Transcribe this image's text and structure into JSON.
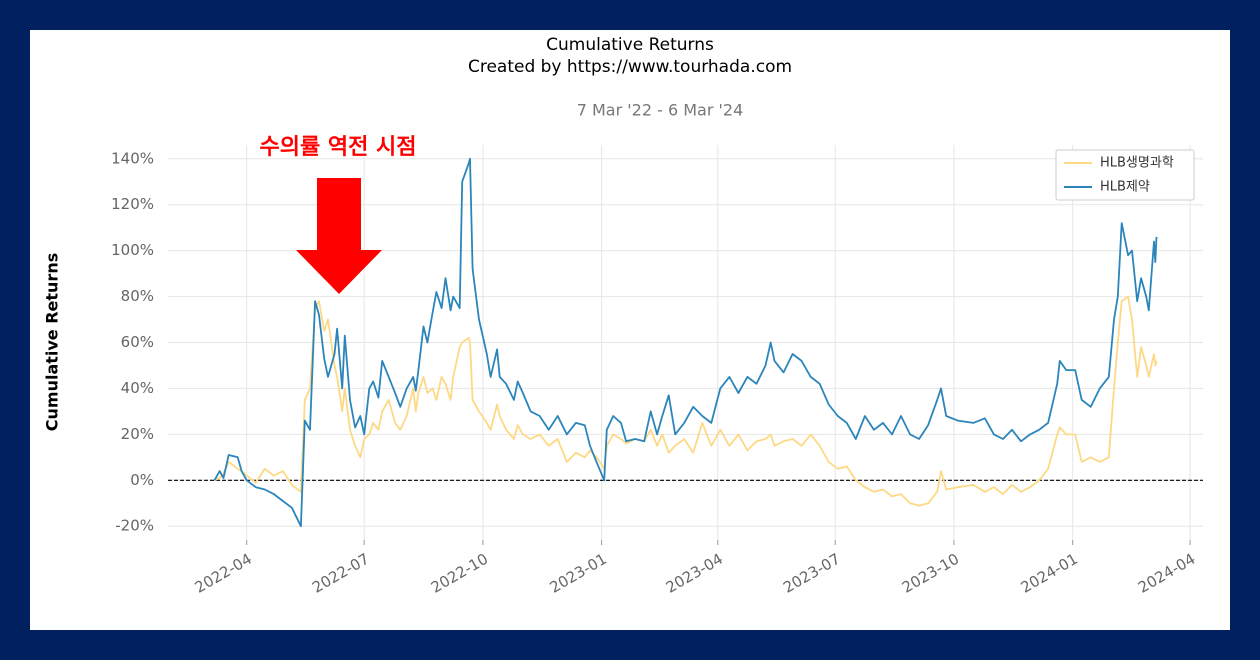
{
  "chart_data": {
    "type": "line",
    "title": "Cumulative Returns",
    "subtitle": "Created by https://www.tourhada.com",
    "date_range": "7 Mar '22 -  6 Mar '24",
    "ylabel": "Cumulative Returns",
    "annotation": "수의률 역전 시점",
    "x": [
      "2022-03-07",
      "2022-03-11",
      "2022-03-14",
      "2022-03-18",
      "2022-03-25",
      "2022-03-28",
      "2022-04-01",
      "2022-04-08",
      "2022-04-15",
      "2022-04-22",
      "2022-04-29",
      "2022-05-06",
      "2022-05-13",
      "2022-05-16",
      "2022-05-20",
      "2022-05-24",
      "2022-05-27",
      "2022-05-31",
      "2022-06-03",
      "2022-06-08",
      "2022-06-10",
      "2022-06-14",
      "2022-06-16",
      "2022-06-20",
      "2022-06-24",
      "2022-06-28",
      "2022-07-01",
      "2022-07-05",
      "2022-07-08",
      "2022-07-12",
      "2022-07-15",
      "2022-07-20",
      "2022-07-25",
      "2022-07-29",
      "2022-08-03",
      "2022-08-08",
      "2022-08-10",
      "2022-08-12",
      "2022-08-16",
      "2022-08-19",
      "2022-08-23",
      "2022-08-26",
      "2022-08-30",
      "2022-09-02",
      "2022-09-06",
      "2022-09-08",
      "2022-09-13",
      "2022-09-15",
      "2022-09-20",
      "2022-09-21",
      "2022-09-23",
      "2022-09-28",
      "2022-10-04",
      "2022-10-07",
      "2022-10-12",
      "2022-10-14",
      "2022-10-19",
      "2022-10-25",
      "2022-10-28",
      "2022-11-01",
      "2022-11-07",
      "2022-11-14",
      "2022-11-21",
      "2022-11-28",
      "2022-12-05",
      "2022-12-12",
      "2022-12-19",
      "2022-12-23",
      "2022-12-28",
      "2023-01-03",
      "2023-01-05",
      "2023-01-10",
      "2023-01-16",
      "2023-01-20",
      "2023-01-27",
      "2023-02-03",
      "2023-02-08",
      "2023-02-13",
      "2023-02-17",
      "2023-02-22",
      "2023-02-27",
      "2023-03-06",
      "2023-03-13",
      "2023-03-20",
      "2023-03-27",
      "2023-04-03",
      "2023-04-10",
      "2023-04-17",
      "2023-04-24",
      "2023-05-01",
      "2023-05-08",
      "2023-05-12",
      "2023-05-15",
      "2023-05-22",
      "2023-05-29",
      "2023-06-05",
      "2023-06-12",
      "2023-06-19",
      "2023-06-26",
      "2023-07-03",
      "2023-07-10",
      "2023-07-17",
      "2023-07-24",
      "2023-07-31",
      "2023-08-07",
      "2023-08-14",
      "2023-08-21",
      "2023-08-28",
      "2023-09-04",
      "2023-09-11",
      "2023-09-18",
      "2023-09-21",
      "2023-09-25",
      "2023-10-04",
      "2023-10-16",
      "2023-10-25",
      "2023-11-01",
      "2023-11-08",
      "2023-11-15",
      "2023-11-22",
      "2023-11-29",
      "2023-12-06",
      "2023-12-13",
      "2023-12-20",
      "2023-12-22",
      "2023-12-27",
      "2024-01-03",
      "2024-01-08",
      "2024-01-15",
      "2024-01-22",
      "2024-01-29",
      "2024-02-02",
      "2024-02-05",
      "2024-02-08",
      "2024-02-13",
      "2024-02-16",
      "2024-02-20",
      "2024-02-23",
      "2024-02-27",
      "2024-02-29",
      "2024-03-04",
      "2024-03-05",
      "2024-03-06"
    ],
    "series": [
      {
        "name": "HLB생명과학",
        "color": "#fdd985",
        "values": [
          0,
          1,
          3,
          8,
          5,
          4,
          2,
          -1,
          5,
          2,
          4,
          -2,
          -5,
          35,
          40,
          75,
          78,
          65,
          70,
          50,
          45,
          30,
          40,
          22,
          15,
          10,
          18,
          20,
          25,
          22,
          30,
          35,
          25,
          22,
          28,
          40,
          30,
          38,
          45,
          38,
          40,
          35,
          45,
          42,
          35,
          45,
          58,
          60,
          62,
          60,
          35,
          30,
          25,
          22,
          33,
          28,
          22,
          18,
          24,
          20,
          18,
          20,
          15,
          18,
          8,
          12,
          10,
          13,
          10,
          5,
          15,
          20,
          18,
          16,
          18,
          17,
          22,
          15,
          20,
          12,
          15,
          18,
          12,
          25,
          15,
          22,
          15,
          20,
          13,
          17,
          18,
          20,
          15,
          17,
          18,
          15,
          20,
          15,
          8,
          5,
          6,
          0,
          -3,
          -5,
          -4,
          -7,
          -6,
          -10,
          -11,
          -10,
          -5,
          4,
          -4,
          -3,
          -2,
          -5,
          -3,
          -6,
          -2,
          -5,
          -3,
          0,
          5,
          20,
          23,
          20,
          20,
          8,
          10,
          8,
          10,
          40,
          60,
          78,
          80,
          70,
          45,
          58,
          50,
          45,
          55,
          50,
          52
        ]
      },
      {
        "name": "HLB제약",
        "color": "#2b85bb",
        "values": [
          0,
          4,
          1,
          11,
          10,
          4,
          0,
          -3,
          -4,
          -6,
          -9,
          -12,
          -20,
          26,
          22,
          78,
          72,
          53,
          45,
          55,
          66,
          40,
          63,
          35,
          23,
          28,
          20,
          40,
          43,
          36,
          52,
          45,
          38,
          32,
          40,
          45,
          39,
          48,
          67,
          60,
          73,
          82,
          75,
          88,
          74,
          80,
          75,
          130,
          138,
          140,
          92,
          70,
          55,
          45,
          57,
          45,
          42,
          35,
          43,
          38,
          30,
          28,
          22,
          28,
          20,
          25,
          24,
          15,
          8,
          0,
          22,
          28,
          25,
          17,
          18,
          17,
          30,
          20,
          28,
          37,
          20,
          25,
          32,
          28,
          25,
          40,
          45,
          38,
          45,
          42,
          50,
          60,
          52,
          47,
          55,
          52,
          45,
          42,
          33,
          28,
          25,
          18,
          28,
          22,
          25,
          20,
          28,
          20,
          18,
          24,
          35,
          40,
          28,
          26,
          25,
          27,
          20,
          18,
          22,
          17,
          20,
          22,
          25,
          42,
          52,
          48,
          48,
          35,
          32,
          40,
          45,
          70,
          80,
          112,
          98,
          100,
          78,
          88,
          80,
          74,
          104,
          95,
          106
        ]
      }
    ],
    "xlim": [
      "2022-01-30",
      "2024-04-11"
    ],
    "xticks": [
      {
        "value": "2022-04-01",
        "label": "2022-04"
      },
      {
        "value": "2022-07-01",
        "label": "2022-07"
      },
      {
        "value": "2022-10-01",
        "label": "2022-10"
      },
      {
        "value": "2023-01-01",
        "label": "2023-01"
      },
      {
        "value": "2023-04-01",
        "label": "2023-04"
      },
      {
        "value": "2023-07-01",
        "label": "2023-07"
      },
      {
        "value": "2023-10-01",
        "label": "2023-10"
      },
      {
        "value": "2024-01-01",
        "label": "2024-01"
      },
      {
        "value": "2024-04-01",
        "label": "2024-04"
      }
    ],
    "ylim": [
      -26,
      146
    ],
    "yticks": [
      {
        "value": -20,
        "label": "-20%"
      },
      {
        "value": 0,
        "label": "0%"
      },
      {
        "value": 20,
        "label": "20%"
      },
      {
        "value": 40,
        "label": "40%"
      },
      {
        "value": 60,
        "label": "60%"
      },
      {
        "value": 80,
        "label": "80%"
      },
      {
        "value": 100,
        "label": "100%"
      },
      {
        "value": 120,
        "label": "120%"
      },
      {
        "value": 140,
        "label": "140%"
      }
    ],
    "grid": true,
    "legend": "upper right"
  }
}
